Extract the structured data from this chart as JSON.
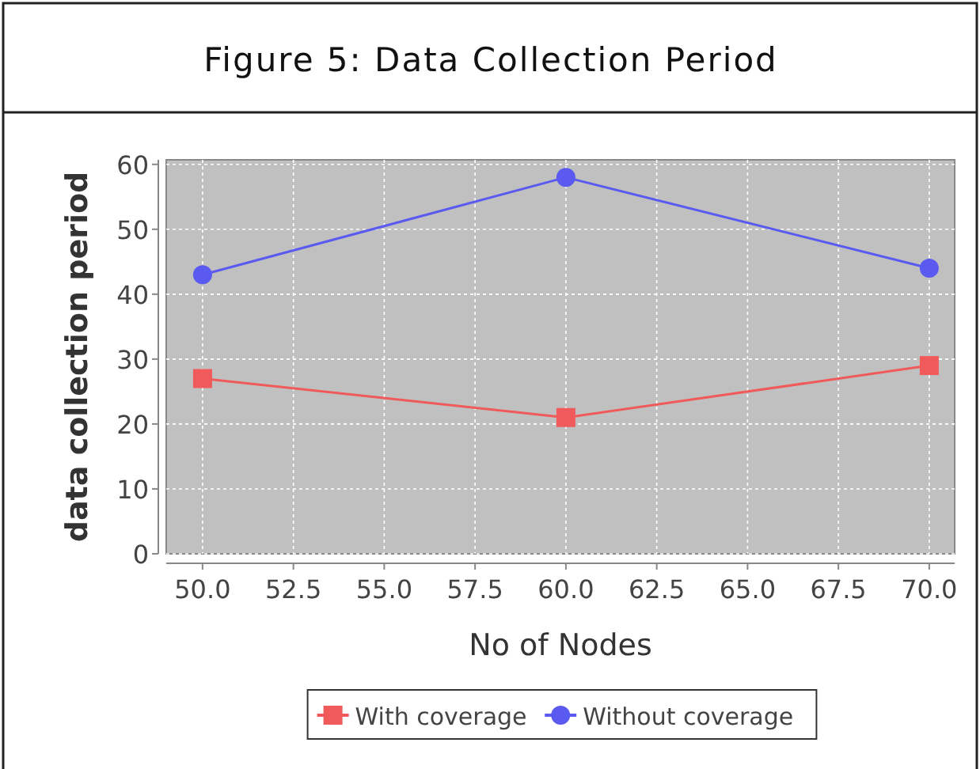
{
  "chart_data": {
    "type": "line",
    "title": "Figure 5: Data Collection Period",
    "xlabel": "No of Nodes",
    "ylabel": "data collection period",
    "x": [
      50,
      60,
      70
    ],
    "series": [
      {
        "name": "With coverage",
        "color": "#f05a5a",
        "marker": "square",
        "values": [
          27,
          21,
          29
        ]
      },
      {
        "name": "Without coverage",
        "color": "#5a5af0",
        "marker": "circle",
        "values": [
          43,
          58,
          44
        ]
      }
    ],
    "xlim": [
      49,
      70.7
    ],
    "ylim": [
      0,
      60.7
    ],
    "xticks": [
      {
        "value": 50,
        "label": "50.0"
      },
      {
        "value": 52.5,
        "label": "52.5"
      },
      {
        "value": 55,
        "label": "55.0"
      },
      {
        "value": 57.5,
        "label": "57.5"
      },
      {
        "value": 60,
        "label": "60.0"
      },
      {
        "value": 62.5,
        "label": "62.5"
      },
      {
        "value": 65,
        "label": "65.0"
      },
      {
        "value": 67.5,
        "label": "67.5"
      },
      {
        "value": 70,
        "label": "70.0"
      }
    ],
    "yticks": [
      0,
      10,
      20,
      30,
      40,
      50,
      60
    ],
    "grid": true,
    "legend": "bottom",
    "line_style": "solid"
  }
}
